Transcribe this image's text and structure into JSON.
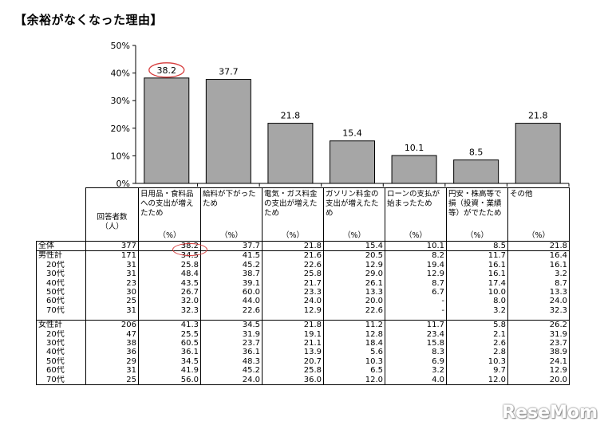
{
  "title": "【余裕がなくなった理由】",
  "chart_data": {
    "type": "bar",
    "categories": [
      "日用品・食料品への支出が増えたため",
      "給料が下がったため",
      "電気・ガス料金の支出が増えたため",
      "ガソリン料金の支出が増えたため",
      "ローンの支払が始まったため",
      "円安・株高等で損（投資・業績等）がでたため",
      "その他"
    ],
    "values": [
      38.2,
      37.7,
      21.8,
      15.4,
      10.1,
      8.5,
      21.8
    ],
    "value_labels": [
      "38.2",
      "37.7",
      "21.8",
      "15.4",
      "10.1",
      "8.5",
      "21.8"
    ],
    "ylim": [
      0,
      50
    ],
    "yticks": [
      "0%",
      "10%",
      "20%",
      "30%",
      "40%",
      "50%"
    ],
    "bar_color": "#a6a6a6",
    "highlight_color": "#d63a3a"
  },
  "table": {
    "respondents_header": "回答者数",
    "respondents_unit": "（人）",
    "headers": [
      "日用品・食料品への支出が増えたため",
      "給料が下がったため",
      "電気・ガス料金の支出が増えたため",
      "ガソリン料金の支出が増えたため",
      "ローンの支払が始まったため",
      "円安・株高等で損（投資・業績等）がでたため",
      "その他"
    ],
    "pct_unit": "（%）",
    "rows": [
      {
        "label": "全体",
        "n": "377",
        "v": [
          "38.2",
          "37.7",
          "21.8",
          "15.4",
          "10.1",
          "8.5",
          "21.8"
        ]
      },
      {
        "label": "男性計",
        "n": "171",
        "v": [
          "34.5",
          "41.5",
          "21.6",
          "20.5",
          "8.2",
          "11.7",
          "16.4"
        ]
      },
      {
        "label": "20代",
        "n": "31",
        "v": [
          "25.8",
          "45.2",
          "22.6",
          "12.9",
          "19.4",
          "16.1",
          "16.1"
        ]
      },
      {
        "label": "30代",
        "n": "31",
        "v": [
          "48.4",
          "38.7",
          "25.8",
          "29.0",
          "12.9",
          "16.1",
          "3.2"
        ]
      },
      {
        "label": "40代",
        "n": "23",
        "v": [
          "43.5",
          "39.1",
          "21.7",
          "26.1",
          "8.7",
          "17.4",
          "8.7"
        ]
      },
      {
        "label": "50代",
        "n": "30",
        "v": [
          "26.7",
          "60.0",
          "23.3",
          "13.3",
          "6.7",
          "10.0",
          "13.3"
        ]
      },
      {
        "label": "60代",
        "n": "25",
        "v": [
          "32.0",
          "44.0",
          "24.0",
          "20.0",
          "-",
          "8.0",
          "24.0"
        ]
      },
      {
        "label": "70代",
        "n": "31",
        "v": [
          "32.3",
          "22.6",
          "12.9",
          "22.6",
          "-",
          "3.2",
          "32.3"
        ]
      },
      {
        "label": "女性計",
        "n": "206",
        "v": [
          "41.3",
          "34.5",
          "21.8",
          "11.2",
          "11.7",
          "5.8",
          "26.2"
        ]
      },
      {
        "label": "20代",
        "n": "47",
        "v": [
          "25.5",
          "31.9",
          "19.1",
          "12.8",
          "23.4",
          "2.1",
          "31.9"
        ]
      },
      {
        "label": "30代",
        "n": "38",
        "v": [
          "60.5",
          "23.7",
          "21.1",
          "18.4",
          "15.8",
          "2.6",
          "23.7"
        ]
      },
      {
        "label": "40代",
        "n": "36",
        "v": [
          "36.1",
          "36.1",
          "13.9",
          "5.6",
          "8.3",
          "2.8",
          "38.9"
        ]
      },
      {
        "label": "50代",
        "n": "29",
        "v": [
          "34.5",
          "48.3",
          "20.7",
          "10.3",
          "6.9",
          "10.3",
          "24.1"
        ]
      },
      {
        "label": "60代",
        "n": "31",
        "v": [
          "41.9",
          "45.2",
          "25.8",
          "6.5",
          "3.2",
          "9.7",
          "12.9"
        ]
      },
      {
        "label": "70代",
        "n": "25",
        "v": [
          "56.0",
          "24.0",
          "36.0",
          "12.0",
          "4.0",
          "12.0",
          "20.0"
        ]
      }
    ]
  },
  "watermark": "ReseMom"
}
